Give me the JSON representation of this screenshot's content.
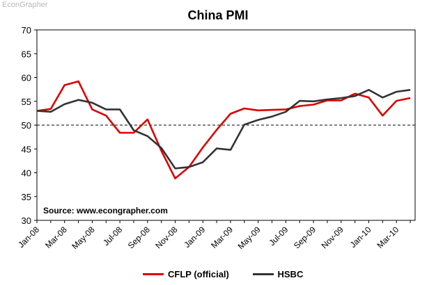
{
  "watermark": "EconGrapher",
  "chart_data": {
    "type": "line",
    "title": "China PMI",
    "xlabel": "",
    "ylabel": "",
    "ylim": [
      30,
      70
    ],
    "yticks": [
      30,
      35,
      40,
      45,
      50,
      55,
      60,
      65,
      70
    ],
    "x_tick_labels": [
      "Jan-08",
      "Mar-08",
      "May-08",
      "Jul-08",
      "Sep-08",
      "Nov-08",
      "Jan-09",
      "Mar-09",
      "May-09",
      "Jul-09",
      "Sep-09",
      "Nov-09",
      "Jan-10",
      "Mar-10"
    ],
    "months": [
      "Jan-08",
      "Feb-08",
      "Mar-08",
      "Apr-08",
      "May-08",
      "Jun-08",
      "Jul-08",
      "Aug-08",
      "Sep-08",
      "Oct-08",
      "Nov-08",
      "Dec-08",
      "Jan-09",
      "Feb-09",
      "Mar-09",
      "Apr-09",
      "May-09",
      "Jun-09",
      "Jul-09",
      "Aug-09",
      "Sep-09",
      "Oct-09",
      "Nov-09",
      "Dec-09",
      "Jan-10",
      "Feb-10",
      "Mar-10",
      "Apr-10"
    ],
    "reference_line": 50,
    "annotation": "Source: www.econgrapher.com",
    "series": [
      {
        "name": "CFLP (official)",
        "color": "#dd0000",
        "values": [
          53.0,
          53.4,
          58.4,
          59.2,
          53.3,
          52.0,
          48.4,
          48.4,
          51.2,
          44.6,
          38.8,
          41.2,
          45.3,
          49.0,
          52.4,
          53.5,
          53.1,
          53.2,
          53.3,
          54.0,
          54.3,
          55.2,
          55.2,
          56.6,
          55.8,
          52.0,
          55.1,
          55.7
        ]
      },
      {
        "name": "HSBC",
        "color": "#333333",
        "values": [
          53.0,
          52.8,
          54.4,
          55.3,
          54.7,
          53.3,
          53.3,
          48.9,
          47.7,
          45.2,
          40.9,
          41.2,
          42.2,
          45.1,
          44.8,
          50.1,
          51.1,
          51.8,
          52.8,
          55.1,
          55.0,
          55.4,
          55.7,
          56.1,
          57.4,
          55.8,
          57.0,
          57.4
        ]
      }
    ]
  }
}
